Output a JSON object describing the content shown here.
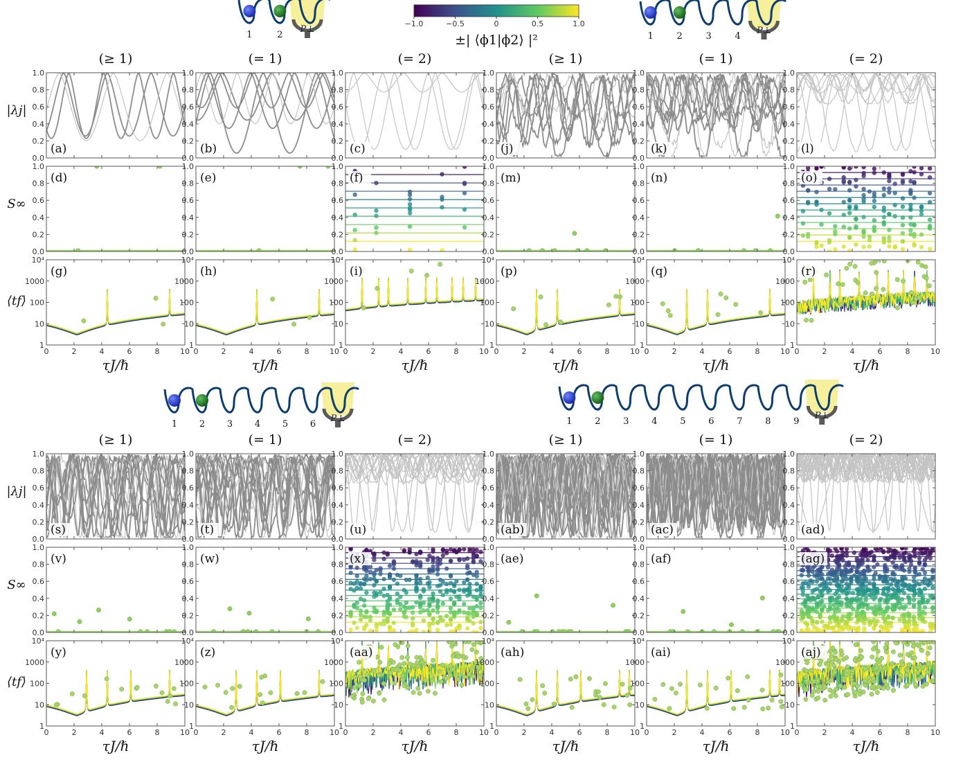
{
  "chart_data": {
    "type": "line",
    "groups": [
      {
        "sites": [
          "1",
          "2"
        ],
        "panels": [
          [
            "(a)",
            "(b)",
            "(c)"
          ],
          [
            "(d)",
            "(e)",
            "(f)"
          ],
          [
            "(g)",
            "(h)",
            "(i)"
          ]
        ]
      },
      {
        "sites": [
          "1",
          "2",
          "3",
          "4"
        ],
        "panels": [
          [
            "(j)",
            "(k)",
            "(l)"
          ],
          [
            "(m)",
            "(n)",
            "(o)"
          ],
          [
            "(p)",
            "(q)",
            "(r)"
          ]
        ]
      },
      {
        "sites": [
          "1",
          "2",
          "3",
          "4",
          "5",
          "6"
        ],
        "panels": [
          [
            "(s)",
            "(t)",
            "(u)"
          ],
          [
            "(v)",
            "(w)",
            "(x)"
          ],
          [
            "(y)",
            "(z)",
            "(aa)"
          ]
        ]
      },
      {
        "sites": [
          "1",
          "2",
          "3",
          "4",
          "5",
          "6",
          "7",
          "8",
          "9"
        ],
        "panels": [
          [
            "(ab)",
            "(ac)",
            "(ad)"
          ],
          [
            "(ae)",
            "(af)",
            "(ag)"
          ],
          [
            "(ah)",
            "(ai)",
            "(aj)"
          ]
        ]
      }
    ],
    "column_titles": [
      "(≥ 1)",
      "(= 1)",
      "(= 2)"
    ],
    "detector_label": "P⊥",
    "ylabels": [
      "|λj|",
      "S∞",
      "⟨tf⟩"
    ],
    "xlabel": "τJ/ℏ",
    "xlim": [
      0,
      10
    ],
    "xticks": [
      "0",
      "2",
      "4",
      "6",
      "8",
      "10"
    ],
    "row_ranges": [
      [
        0,
        1
      ],
      [
        0,
        1
      ],
      [
        1,
        10000
      ]
    ],
    "yticks": [
      [
        "0.0",
        "0.2",
        "0.4",
        "0.6",
        "0.8",
        "1.0"
      ],
      [
        "0.0",
        "0.2",
        "0.4",
        "0.6",
        "0.8",
        "1.0"
      ],
      [
        "1",
        "10",
        "100",
        "1000",
        "10⁴"
      ]
    ],
    "ylog_row3": true,
    "colorbar": {
      "label": "±| ⟨ϕ1|ϕ2⟩ |²",
      "ticks": [
        "−1.0",
        "−0.5",
        "0",
        "0.5",
        "1.0"
      ],
      "range": [
        -1,
        1
      ],
      "colormap": "viridis"
    },
    "colors": {
      "line": "#8c8c8c",
      "line_light": "#c4c4c4",
      "well": "#0b3d6e",
      "ball_1": "#1530c8",
      "ball_2": "#1b6b1e",
      "detector": "#5a5a5a",
      "beam": "#f5ec8a"
    }
  }
}
